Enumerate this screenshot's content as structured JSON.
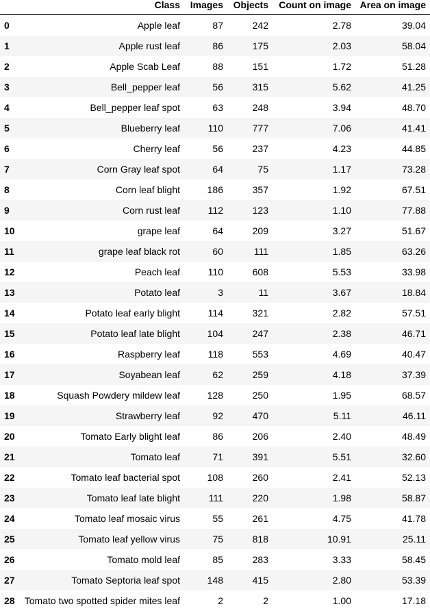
{
  "table": {
    "headers": [
      "",
      "Class",
      "Images",
      "Objects",
      "Count on image",
      "Area on image"
    ],
    "rows": [
      [
        "0",
        "Apple leaf",
        "87",
        "242",
        "2.78",
        "39.04"
      ],
      [
        "1",
        "Apple rust leaf",
        "86",
        "175",
        "2.03",
        "58.04"
      ],
      [
        "2",
        "Apple Scab Leaf",
        "88",
        "151",
        "1.72",
        "51.28"
      ],
      [
        "3",
        "Bell_pepper leaf",
        "56",
        "315",
        "5.62",
        "41.25"
      ],
      [
        "4",
        "Bell_pepper leaf spot",
        "63",
        "248",
        "3.94",
        "48.70"
      ],
      [
        "5",
        "Blueberry leaf",
        "110",
        "777",
        "7.06",
        "41.41"
      ],
      [
        "6",
        "Cherry leaf",
        "56",
        "237",
        "4.23",
        "44.85"
      ],
      [
        "7",
        "Corn Gray leaf spot",
        "64",
        "75",
        "1.17",
        "73.28"
      ],
      [
        "8",
        "Corn leaf blight",
        "186",
        "357",
        "1.92",
        "67.51"
      ],
      [
        "9",
        "Corn rust leaf",
        "112",
        "123",
        "1.10",
        "77.88"
      ],
      [
        "10",
        "grape leaf",
        "64",
        "209",
        "3.27",
        "51.67"
      ],
      [
        "11",
        "grape leaf black rot",
        "60",
        "111",
        "1.85",
        "63.26"
      ],
      [
        "12",
        "Peach leaf",
        "110",
        "608",
        "5.53",
        "33.98"
      ],
      [
        "13",
        "Potato leaf",
        "3",
        "11",
        "3.67",
        "18.84"
      ],
      [
        "14",
        "Potato leaf early blight",
        "114",
        "321",
        "2.82",
        "57.51"
      ],
      [
        "15",
        "Potato leaf late blight",
        "104",
        "247",
        "2.38",
        "46.71"
      ],
      [
        "16",
        "Raspberry leaf",
        "118",
        "553",
        "4.69",
        "40.47"
      ],
      [
        "17",
        "Soyabean leaf",
        "62",
        "259",
        "4.18",
        "37.39"
      ],
      [
        "18",
        "Squash Powdery mildew leaf",
        "128",
        "250",
        "1.95",
        "68.57"
      ],
      [
        "19",
        "Strawberry leaf",
        "92",
        "470",
        "5.11",
        "46.11"
      ],
      [
        "20",
        "Tomato Early blight leaf",
        "86",
        "206",
        "2.40",
        "48.49"
      ],
      [
        "21",
        "Tomato leaf",
        "71",
        "391",
        "5.51",
        "32.60"
      ],
      [
        "22",
        "Tomato leaf bacterial spot",
        "108",
        "260",
        "2.41",
        "52.13"
      ],
      [
        "23",
        "Tomato leaf late blight",
        "111",
        "220",
        "1.98",
        "58.87"
      ],
      [
        "24",
        "Tomato leaf mosaic virus",
        "55",
        "261",
        "4.75",
        "41.78"
      ],
      [
        "25",
        "Tomato leaf yellow virus",
        "75",
        "818",
        "10.91",
        "25.11"
      ],
      [
        "26",
        "Tomato mold leaf",
        "85",
        "283",
        "3.33",
        "58.45"
      ],
      [
        "27",
        "Tomato Septoria leaf spot",
        "148",
        "415",
        "2.80",
        "53.39"
      ],
      [
        "28",
        "Tomato two spotted spider mites leaf",
        "2",
        "2",
        "1.00",
        "17.18"
      ]
    ]
  }
}
